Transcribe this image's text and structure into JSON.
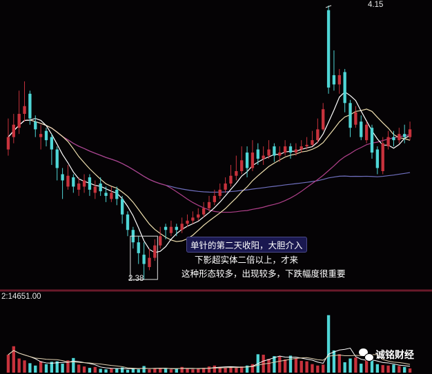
{
  "chart_data": {
    "type": "candlestick",
    "title": "",
    "price_ylim": [
      2.38,
      4.15
    ],
    "high_label": "4.15",
    "low_label": "2.38",
    "volume_label": "2:14651.00",
    "volume_max": 14651,
    "colors": {
      "up": "#c8323c",
      "down": "#4fd6d6",
      "background": "#050305",
      "ma5": "#ffffff",
      "ma10": "#f0e0b0",
      "ma30": "#b0408a",
      "ma60": "#7070c0",
      "separator": "#6a1a2a"
    },
    "candles_ohlc": [
      [
        3.22,
        3.42,
        3.18,
        3.3
      ],
      [
        3.3,
        3.45,
        3.26,
        3.38
      ],
      [
        3.36,
        3.6,
        3.32,
        3.45
      ],
      [
        3.45,
        3.66,
        3.4,
        3.5
      ],
      [
        3.58,
        3.6,
        3.38,
        3.42
      ],
      [
        3.4,
        3.44,
        3.3,
        3.35
      ],
      [
        3.3,
        3.38,
        3.22,
        3.32
      ],
      [
        3.34,
        3.36,
        3.24,
        3.28
      ],
      [
        3.3,
        3.32,
        3.12,
        3.22
      ],
      [
        3.22,
        3.24,
        3.02,
        3.1
      ],
      [
        3.06,
        3.1,
        2.9,
        3.02
      ],
      [
        2.98,
        3.12,
        2.96,
        3.05
      ],
      [
        3.04,
        3.06,
        2.94,
        2.98
      ],
      [
        2.96,
        3.04,
        2.92,
        3.0
      ],
      [
        2.98,
        3.06,
        2.94,
        3.02
      ],
      [
        3.04,
        3.06,
        2.92,
        2.96
      ],
      [
        2.94,
        3.02,
        2.9,
        2.98
      ],
      [
        3.0,
        3.04,
        2.92,
        2.95
      ],
      [
        2.94,
        2.98,
        2.88,
        2.92
      ],
      [
        2.9,
        2.98,
        2.88,
        2.94
      ],
      [
        2.96,
        2.98,
        2.86,
        2.9
      ],
      [
        2.9,
        2.92,
        2.74,
        2.8
      ],
      [
        2.8,
        2.82,
        2.66,
        2.7
      ],
      [
        2.7,
        2.72,
        2.58,
        2.62
      ],
      [
        2.62,
        2.66,
        2.48,
        2.55
      ],
      [
        2.54,
        2.62,
        2.38,
        2.48
      ],
      [
        2.46,
        2.58,
        2.44,
        2.52
      ],
      [
        2.52,
        2.64,
        2.5,
        2.6
      ],
      [
        2.6,
        2.72,
        2.58,
        2.66
      ],
      [
        2.72,
        2.74,
        2.64,
        2.7
      ],
      [
        2.68,
        2.76,
        2.66,
        2.72
      ],
      [
        2.72,
        2.74,
        2.66,
        2.7
      ],
      [
        2.7,
        2.78,
        2.68,
        2.74
      ],
      [
        2.74,
        2.8,
        2.72,
        2.76
      ],
      [
        2.76,
        2.82,
        2.74,
        2.78
      ],
      [
        2.78,
        2.84,
        2.76,
        2.8
      ],
      [
        2.8,
        2.88,
        2.78,
        2.84
      ],
      [
        2.84,
        2.92,
        2.82,
        2.88
      ],
      [
        2.88,
        2.96,
        2.86,
        2.92
      ],
      [
        2.92,
        3.0,
        2.9,
        2.96
      ],
      [
        2.96,
        3.04,
        2.94,
        3.0
      ],
      [
        3.0,
        3.12,
        2.98,
        3.05
      ],
      [
        3.05,
        3.18,
        3.02,
        3.08
      ],
      [
        3.08,
        3.24,
        3.06,
        3.15
      ],
      [
        3.2,
        3.24,
        3.04,
        3.1
      ],
      [
        3.1,
        3.28,
        3.08,
        3.2
      ],
      [
        3.22,
        3.26,
        3.12,
        3.16
      ],
      [
        3.16,
        3.24,
        3.12,
        3.18
      ],
      [
        3.18,
        3.28,
        3.16,
        3.22
      ],
      [
        3.24,
        3.26,
        3.14,
        3.18
      ],
      [
        3.18,
        3.24,
        3.14,
        3.2
      ],
      [
        3.2,
        3.28,
        3.18,
        3.24
      ],
      [
        3.24,
        3.26,
        3.16,
        3.2
      ],
      [
        3.2,
        3.26,
        3.18,
        3.22
      ],
      [
        3.22,
        3.28,
        3.2,
        3.24
      ],
      [
        3.24,
        3.3,
        3.22,
        3.25
      ],
      [
        3.25,
        3.34,
        3.24,
        3.28
      ],
      [
        3.28,
        3.42,
        3.26,
        3.35
      ],
      [
        3.35,
        3.52,
        3.34,
        3.48
      ],
      [
        4.12,
        4.15,
        3.58,
        3.62
      ],
      [
        3.7,
        3.86,
        3.6,
        3.64
      ],
      [
        3.64,
        3.74,
        3.58,
        3.7
      ],
      [
        3.72,
        3.74,
        3.46,
        3.52
      ],
      [
        3.52,
        3.54,
        3.3,
        3.36
      ],
      [
        3.38,
        3.5,
        3.36,
        3.46
      ],
      [
        3.4,
        3.44,
        3.28,
        3.3
      ],
      [
        3.28,
        3.4,
        3.26,
        3.38
      ],
      [
        3.36,
        3.38,
        3.16,
        3.2
      ],
      [
        3.22,
        3.24,
        3.06,
        3.1
      ],
      [
        3.08,
        3.3,
        3.06,
        3.26
      ],
      [
        3.24,
        3.34,
        3.22,
        3.3
      ],
      [
        3.3,
        3.34,
        3.24,
        3.28
      ],
      [
        3.28,
        3.36,
        3.26,
        3.32
      ],
      [
        3.32,
        3.38,
        3.26,
        3.3
      ],
      [
        3.3,
        3.4,
        3.28,
        3.35
      ]
    ],
    "volumes": [
      3800,
      5600,
      3000,
      2600,
      2000,
      1500,
      2400,
      1800,
      2300,
      2400,
      1900,
      2600,
      3100,
      1700,
      1300,
      1000,
      1200,
      800,
      700,
      900,
      800,
      1100,
      600,
      900,
      700,
      1400,
      700,
      900,
      1000,
      800,
      700,
      800,
      1200,
      900,
      700,
      800,
      1000,
      1300,
      1500,
      1200,
      1100,
      1200,
      1000,
      1300,
      1500,
      1800,
      3900,
      3800,
      2900,
      3500,
      3500,
      2800,
      3600,
      3000,
      2500,
      2400,
      1800,
      1500,
      1700,
      12200,
      4700,
      3900,
      2200,
      3000,
      3200,
      1900,
      2800,
      2600,
      1800,
      1600,
      1500,
      1700,
      1400,
      1200,
      900
    ]
  },
  "annotations": {
    "line1": "单针的第二天收阳，大胆介入",
    "line2": "下影超实体二倍以上，才来",
    "line3": "这种形态较多，出现较多，下跌幅度很重要"
  },
  "watermark": "诚铭财经"
}
